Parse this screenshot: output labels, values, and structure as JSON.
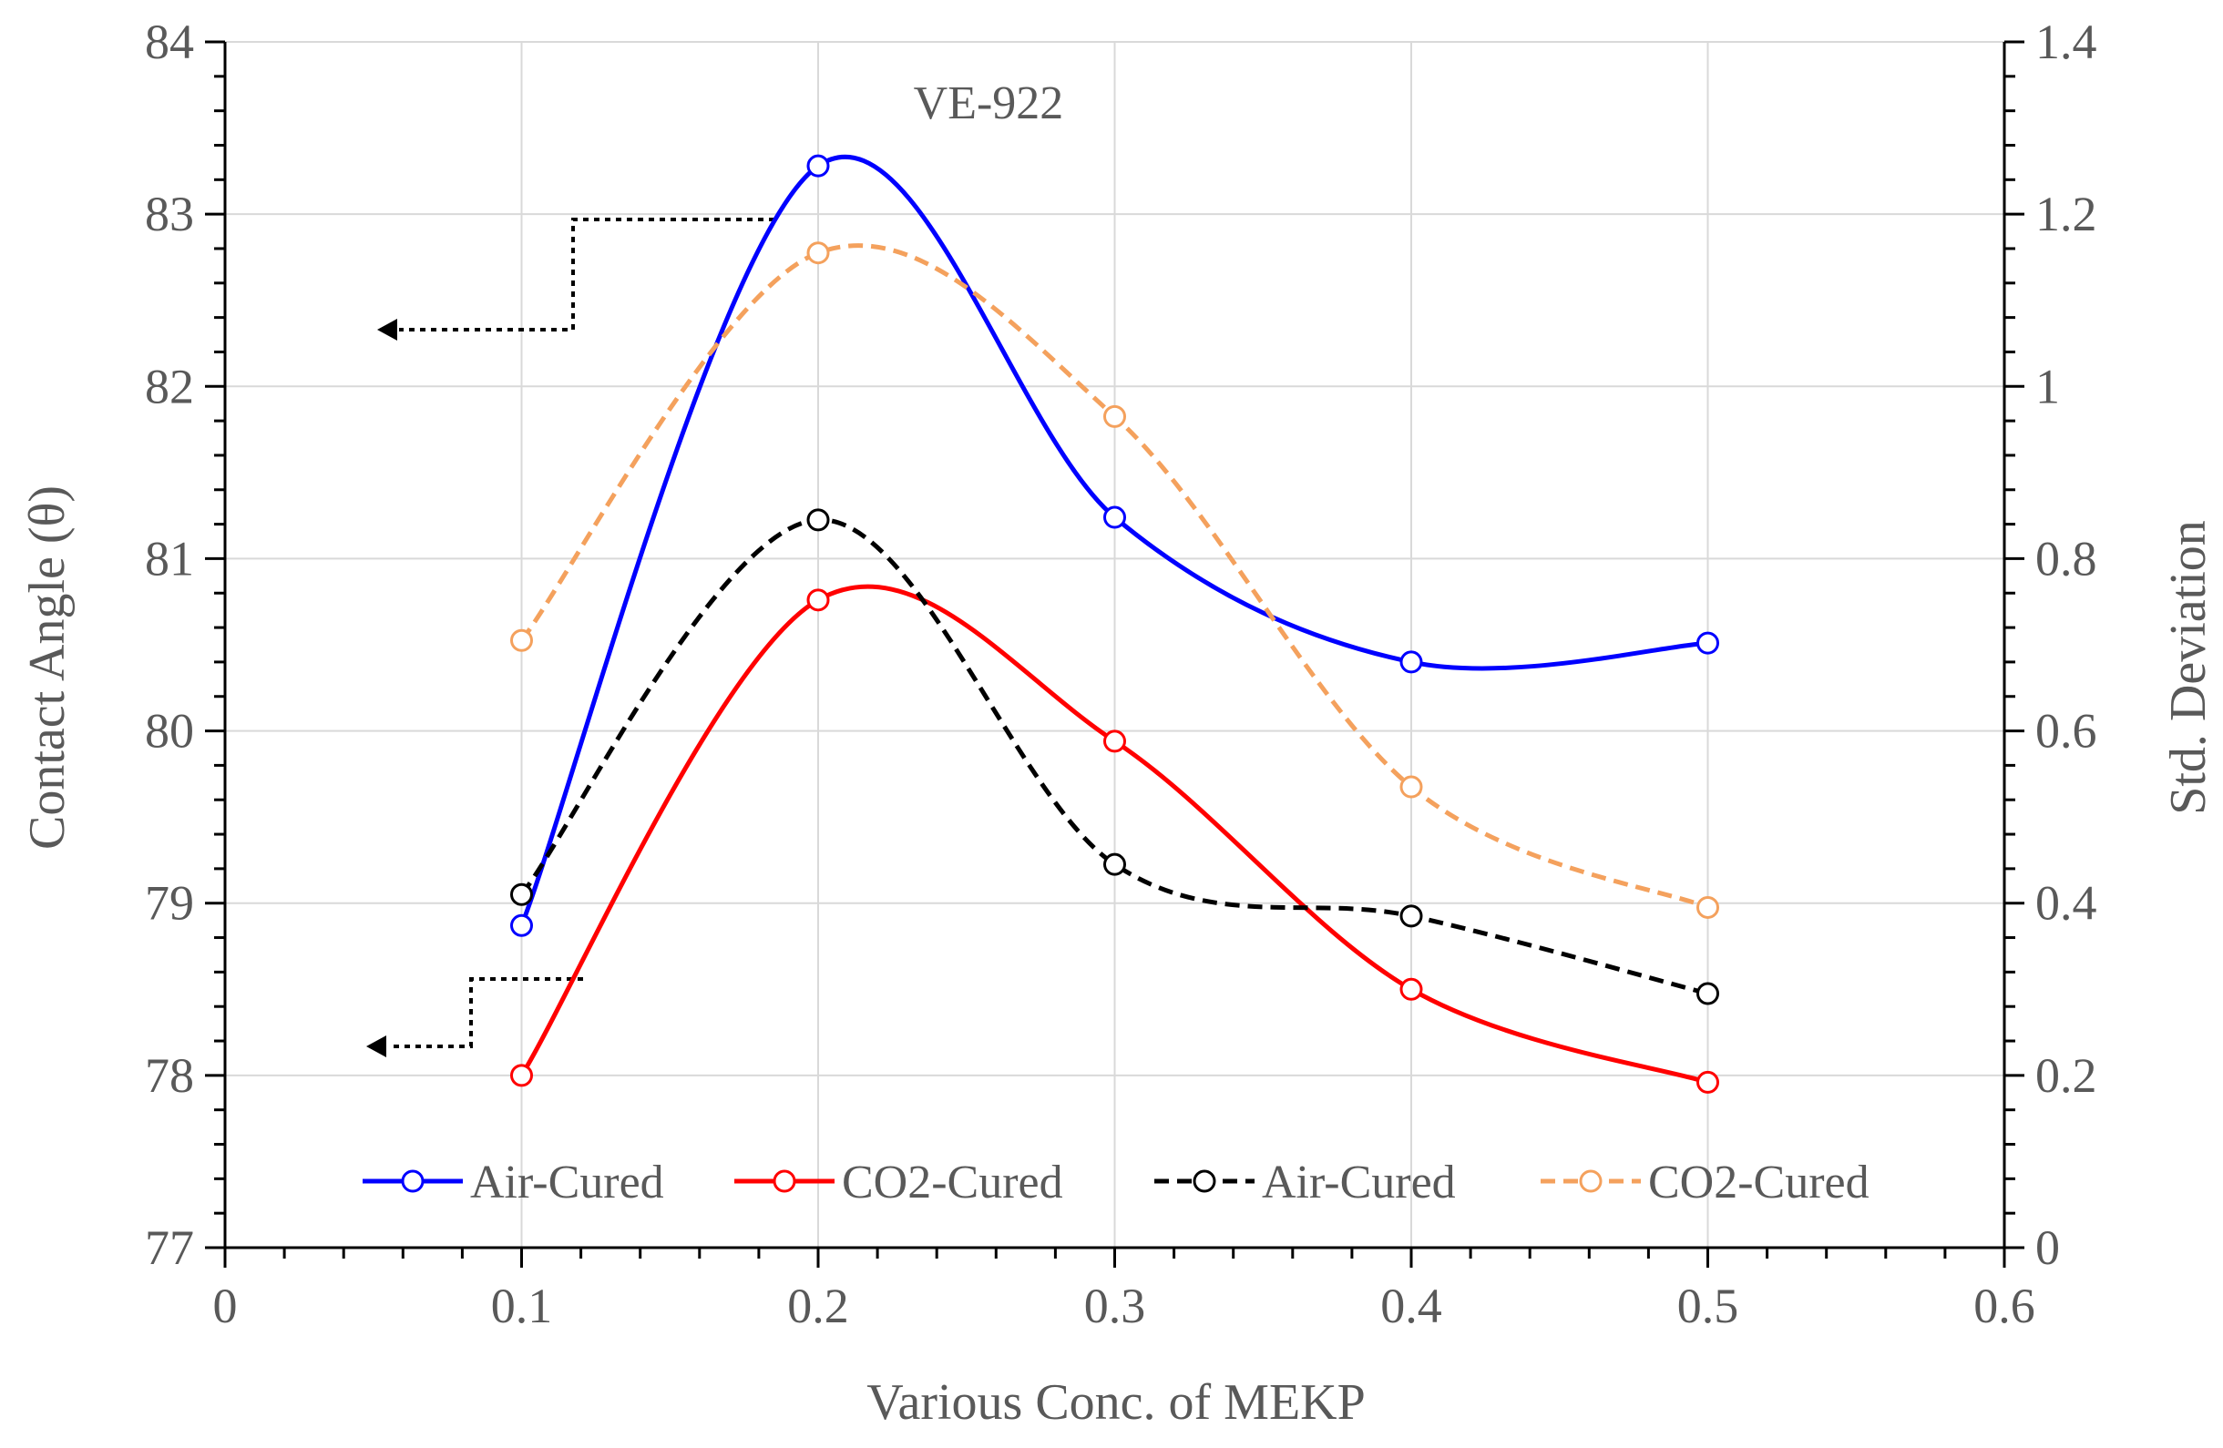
{
  "chart_data": {
    "type": "line",
    "title": "VE-922",
    "xlabel": "Various Conc. of MEKP",
    "ylabel": "Contact Angle (θ)",
    "y2label": "Std. Deviation",
    "xlim": [
      0,
      0.6
    ],
    "ylim": [
      77,
      84
    ],
    "y2lim": [
      0,
      1.4
    ],
    "x_ticks": [
      "0",
      "0.1",
      "0.2",
      "0.3",
      "0.4",
      "0.5",
      "0.6"
    ],
    "y_ticks": [
      "77",
      "78",
      "79",
      "80",
      "81",
      "82",
      "83",
      "84"
    ],
    "y2_ticks": [
      "0",
      "0.2",
      "0.4",
      "0.6",
      "0.8",
      "1",
      "1.2",
      "1.4"
    ],
    "grid": true,
    "legend_position": "bottom",
    "series": [
      {
        "name": "Air-Cured",
        "axis": "left",
        "style": "solid",
        "color": "#0000ff",
        "x": [
          0.1,
          0.2,
          0.3,
          0.4,
          0.5
        ],
        "y": [
          78.87,
          83.28,
          81.24,
          80.4,
          80.51
        ]
      },
      {
        "name": "CO2-Cured",
        "axis": "left",
        "style": "solid",
        "color": "#ff0000",
        "x": [
          0.1,
          0.2,
          0.3,
          0.4,
          0.5
        ],
        "y": [
          78.0,
          80.76,
          79.94,
          78.5,
          77.96
        ]
      },
      {
        "name": "Air-Cured",
        "axis": "right",
        "style": "dashed",
        "color": "#000000",
        "x": [
          0.1,
          0.2,
          0.3,
          0.4,
          0.5
        ],
        "y": [
          0.41,
          0.845,
          0.445,
          0.385,
          0.295
        ]
      },
      {
        "name": "CO2-Cured",
        "axis": "right",
        "style": "dashed",
        "color": "#f4a15d",
        "x": [
          0.1,
          0.2,
          0.3,
          0.4,
          0.5
        ],
        "y": [
          0.705,
          1.155,
          0.965,
          0.535,
          0.395
        ]
      }
    ]
  }
}
